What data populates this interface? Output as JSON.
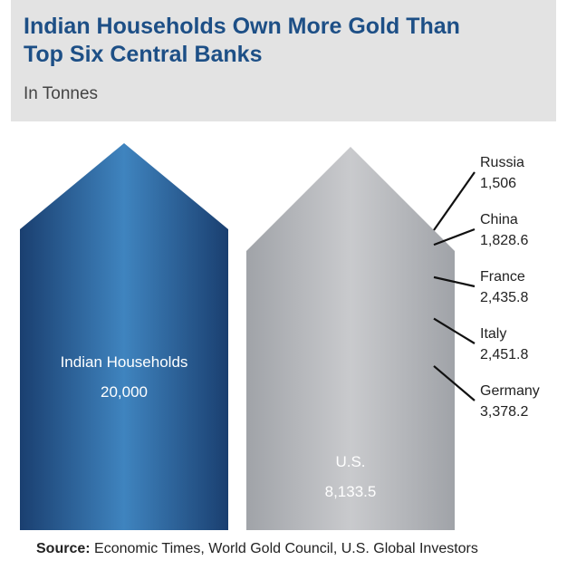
{
  "header": {
    "title_line1": "Indian Households Own More Gold Than",
    "title_line2": "Top Six Central Banks",
    "subtitle": "In Tonnes"
  },
  "footer": {
    "source_label": "Source:",
    "source_text": " Economic Times, World Gold Council, U.S. Global Investors"
  },
  "chart_data": {
    "type": "bar",
    "title": "Indian Households Own More Gold Than Top Six Central Banks",
    "subtitle": "In Tonnes",
    "unit": "Tonnes",
    "series": [
      {
        "name": "Indian Households",
        "values": [
          {
            "label": "Indian Households",
            "value": 20000,
            "display": "20,000",
            "color": "#2e6da4"
          }
        ]
      },
      {
        "name": "Top Six Central Banks",
        "values": [
          {
            "label": "U.S.",
            "value": 8133.5,
            "display": "8,133.5",
            "color": "#2e6da4"
          },
          {
            "label": "Germany",
            "value": 3378.2,
            "display": "3,378.2",
            "color": "#f0902c"
          },
          {
            "label": "Italy",
            "value": 2451.8,
            "display": "2,451.8",
            "color": "#1f9479"
          },
          {
            "label": "France",
            "value": 2435.8,
            "display": "2,435.8",
            "color": "#c72a35"
          },
          {
            "label": "China",
            "value": 1828.6,
            "display": "1,828.6",
            "color": "#8ec9e4"
          },
          {
            "label": "Russia",
            "value": 1506,
            "display": "1,506",
            "color": "#a9abaf"
          }
        ]
      }
    ],
    "source": "Economic Times, World Gold Council, U.S. Global Investors"
  }
}
